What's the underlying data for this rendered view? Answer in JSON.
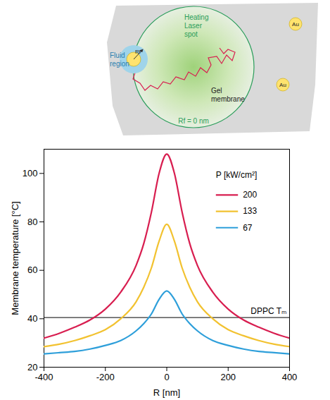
{
  "diagram": {
    "laser_spot": "Heating Laser spot",
    "fluid_region": "Fluid region",
    "radius": "Rf",
    "particles": [
      "Au",
      "Au"
    ],
    "membrane": "Gel membrane",
    "caption": "Rf = 0 nm"
  },
  "chart_data": {
    "type": "line",
    "xlabel": "R [nm]",
    "ylabel": "Membrane temperature [°C]",
    "x": [
      -400,
      -350,
      -300,
      -250,
      -200,
      -150,
      -100,
      -75,
      -50,
      -25,
      0,
      25,
      50,
      75,
      100,
      150,
      200,
      250,
      300,
      350,
      400
    ],
    "series": [
      {
        "name": "200",
        "color": "#d81e50",
        "values": [
          32,
          34,
          36.5,
          39.5,
          44,
          51,
          62,
          71,
          84,
          100,
          108,
          100,
          84,
          71,
          62,
          51,
          44,
          39.5,
          36.5,
          34,
          32
        ]
      },
      {
        "name": "133",
        "color": "#f2c230",
        "values": [
          28.5,
          29.5,
          31,
          33,
          35.5,
          40,
          47,
          53,
          61,
          72,
          79,
          72,
          61,
          53,
          47,
          40,
          35.5,
          33,
          31,
          29.5,
          28.5
        ]
      },
      {
        "name": "67",
        "color": "#2e9fda",
        "values": [
          25.5,
          26,
          26.5,
          27.5,
          29,
          31,
          35,
          38,
          42,
          48,
          51.5,
          48,
          42,
          38,
          35,
          31,
          29,
          27.5,
          26.5,
          26,
          25.5
        ]
      }
    ],
    "legend_title": "P [kW/cm²]",
    "legend": "top-right",
    "annotations": [
      {
        "text": "DPPC Tₘ",
        "y": 40.5
      }
    ],
    "xlim": [
      -400,
      400
    ],
    "xticks": [
      -400,
      -200,
      0,
      200,
      400
    ],
    "ylim": [
      20,
      110
    ],
    "yticks": [
      20,
      40,
      60,
      80,
      100
    ],
    "grid": false
  }
}
